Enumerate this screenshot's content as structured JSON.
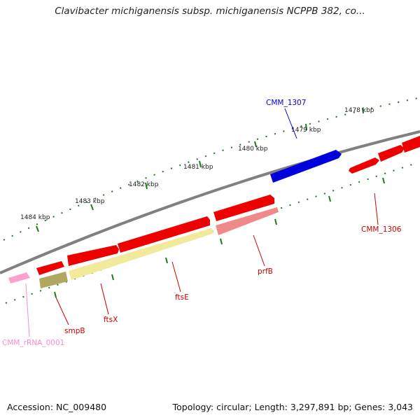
{
  "title": "Clavibacter michiganensis subsp. michiganensis NCPPB 382, co...",
  "footer": {
    "accession": "Accession: NC_009480",
    "summary": "Topology: circular; Length: 3,297,891 bp; Genes: 3,043"
  },
  "scale_labels": [
    "1478 kbp",
    "1479 kbp",
    "1480 kbp",
    "1481 kbp",
    "1482 kbp",
    "1483 kbp",
    "1484 kbp"
  ],
  "genes": [
    {
      "label": "CMM_1307",
      "color": "#0000cc"
    },
    {
      "label": "CMM_1306",
      "color": "#cc0000"
    },
    {
      "label": "prfB",
      "color": "#cc0000"
    },
    {
      "label": "ftsE",
      "color": "#cc0000"
    },
    {
      "label": "ftsX",
      "color": "#cc0000"
    },
    {
      "label": "smpB",
      "color": "#cc0000"
    },
    {
      "label": "CMM_rRNA_0001",
      "color": "#ff88cc"
    }
  ],
  "colors": {
    "backbone": "#808080",
    "cds": "#ee0000",
    "rna": "#ff9fcf",
    "ticks": "#1a7a1a",
    "pale_yellow": "#f0ea9a",
    "olive": "#b0a860",
    "pale_red": "#f08a8a"
  }
}
